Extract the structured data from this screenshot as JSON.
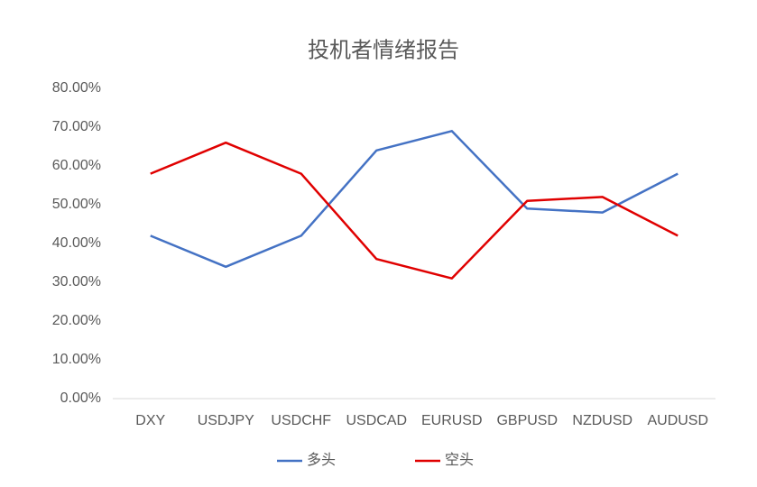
{
  "chart_data": {
    "type": "line",
    "title": "投机者情绪报告",
    "categories": [
      "DXY",
      "USDJPY",
      "USDCHF",
      "USDCAD",
      "EURUSD",
      "GBPUSD",
      "NZDUSD",
      "AUDUSD"
    ],
    "series": [
      {
        "name": "多头",
        "color": "#4472c4",
        "values": [
          42,
          34,
          42,
          64,
          69,
          49,
          48,
          58
        ]
      },
      {
        "name": "空头",
        "color": "#e00000",
        "values": [
          58,
          66,
          58,
          36,
          31,
          51,
          52,
          42
        ]
      }
    ],
    "ylim": [
      0,
      80
    ],
    "yticks": [
      {
        "value": 0,
        "label": "0.00%"
      },
      {
        "value": 10,
        "label": "10.00%"
      },
      {
        "value": 20,
        "label": "20.00%"
      },
      {
        "value": 30,
        "label": "30.00%"
      },
      {
        "value": 40,
        "label": "40.00%"
      },
      {
        "value": 50,
        "label": "50.00%"
      },
      {
        "value": 60,
        "label": "60.00%"
      },
      {
        "value": 70,
        "label": "70.00%"
      },
      {
        "value": 80,
        "label": "80.00%"
      }
    ],
    "grid": false,
    "legend": "bottom"
  }
}
